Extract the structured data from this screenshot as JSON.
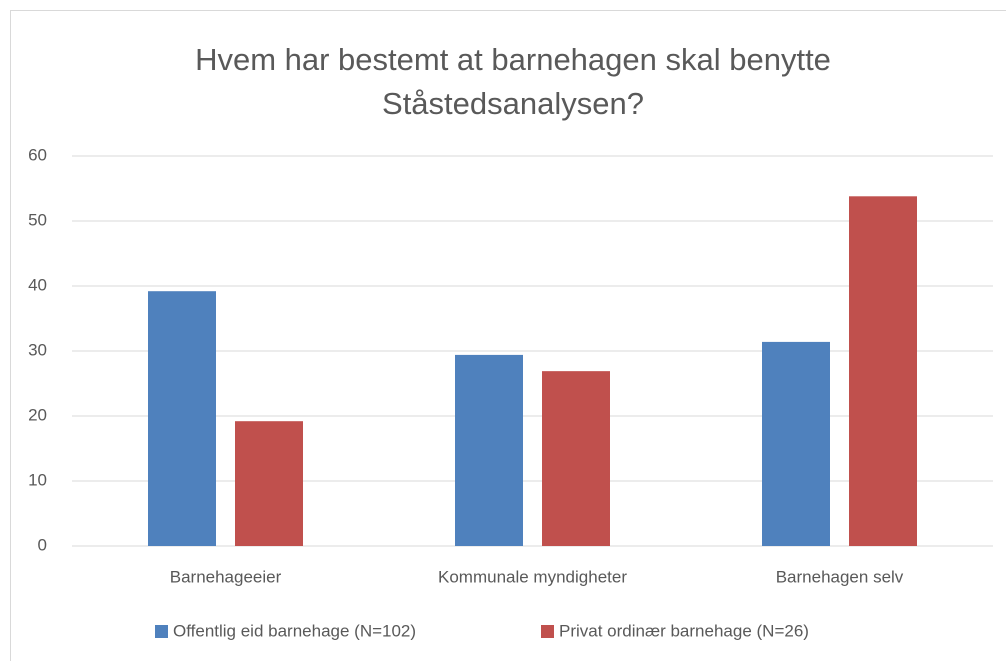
{
  "chart_data": {
    "type": "bar",
    "title": "Hvem har bestemt at barnehagen skal benytte Ståstedsanalysen?",
    "categories": [
      "Barnehageeier",
      "Kommunale myndigheter",
      "Barnehagen selv"
    ],
    "series": [
      {
        "name": "Offentlig eid barnehage (N=102)",
        "color": "#4f81bd",
        "values": [
          39.2,
          29.4,
          31.4
        ]
      },
      {
        "name": "Privat ordinær barnehage (N=26)",
        "color": "#c0504d",
        "values": [
          19.2,
          26.9,
          53.8
        ]
      }
    ],
    "ylim": [
      0,
      60
    ],
    "yticks": [
      0,
      10,
      20,
      30,
      40,
      50,
      60
    ],
    "grid": true,
    "legend": "bottom"
  }
}
